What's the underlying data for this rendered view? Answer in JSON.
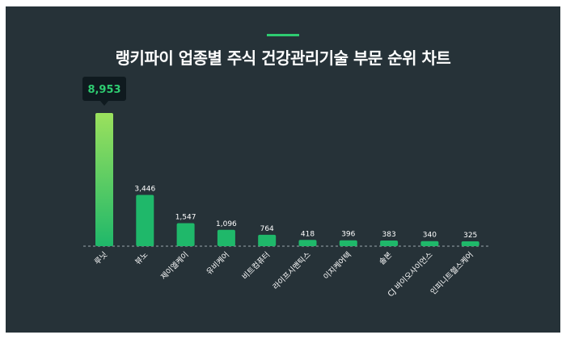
{
  "title": "랭키파이 업종별 주식 건강관리기술 부문 순위 차트",
  "colors": {
    "background": "#263238",
    "accent": "#2ecc71",
    "bar_top": "#9be15d",
    "bar_bottom": "#1fb86a",
    "tooltip_bg": "#0f1a1f"
  },
  "chart_data": {
    "type": "bar",
    "title": "랭키파이 업종별 주식 건강관리기술 부문 순위 차트",
    "categories": [
      "루닛",
      "뷰노",
      "제이엘케이",
      "유비케어",
      "비트컴퓨터",
      "라이프시맨틱스",
      "이지케어텍",
      "솔본",
      "CJ 바이오사이언스",
      "인피니트헬스케어"
    ],
    "values": [
      8953,
      3446,
      1547,
      1096,
      764,
      418,
      396,
      383,
      340,
      325
    ],
    "value_labels": [
      "8,953",
      "3,446",
      "1,547",
      "1,096",
      "764",
      "418",
      "396",
      "383",
      "340",
      "325"
    ],
    "highlight_index": 0,
    "ylim": [
      0,
      8953
    ],
    "grid": false,
    "legend": "none"
  }
}
